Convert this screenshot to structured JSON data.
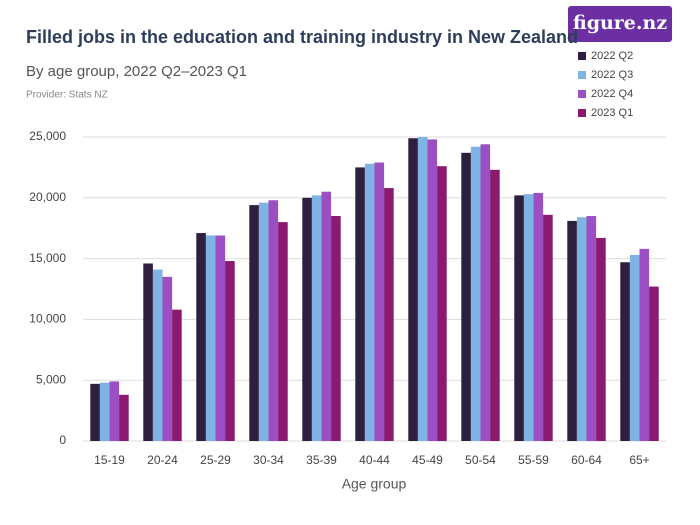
{
  "chart_data": {
    "type": "bar",
    "title": "Filled jobs in the education and training industry in New Zealand",
    "subtitle": "By age group, 2022 Q2–2023 Q1",
    "provider": "Provider: Stats NZ",
    "logo": "figure.nz",
    "x_label": "Age group",
    "categories": [
      "15-19",
      "20-24",
      "25-29",
      "30-34",
      "35-39",
      "40-44",
      "45-49",
      "50-54",
      "55-59",
      "60-64",
      "65+"
    ],
    "series": [
      {
        "name": "2022 Q2",
        "color": "#2e1f3f",
        "values": [
          4700,
          14600,
          17100,
          19400,
          20000,
          22500,
          24900,
          23700,
          20200,
          18100,
          14700
        ]
      },
      {
        "name": "2022 Q3",
        "color": "#7fb3e3",
        "values": [
          4800,
          14100,
          16900,
          19600,
          20200,
          22800,
          25000,
          24200,
          20300,
          18400,
          15300
        ]
      },
      {
        "name": "2022 Q4",
        "color": "#9c4fc2",
        "values": [
          4900,
          13500,
          16900,
          19800,
          20500,
          22900,
          24800,
          24400,
          20400,
          18500,
          15800
        ]
      },
      {
        "name": "2023 Q1",
        "color": "#8a1a70",
        "values": [
          3800,
          10800,
          14800,
          18000,
          18500,
          20800,
          22600,
          22300,
          18600,
          16700,
          12700
        ]
      }
    ],
    "ylim": [
      0,
      25000
    ],
    "yticks": [
      0,
      {
        "value": 5000,
        "label": "5,000"
      },
      {
        "value": 10000,
        "label": "10,000"
      },
      {
        "value": 15000,
        "label": "15,000"
      },
      {
        "value": 20000,
        "label": "20,000"
      },
      {
        "value": 25000,
        "label": "25,000"
      }
    ],
    "grid": true,
    "legend": "top-right"
  }
}
